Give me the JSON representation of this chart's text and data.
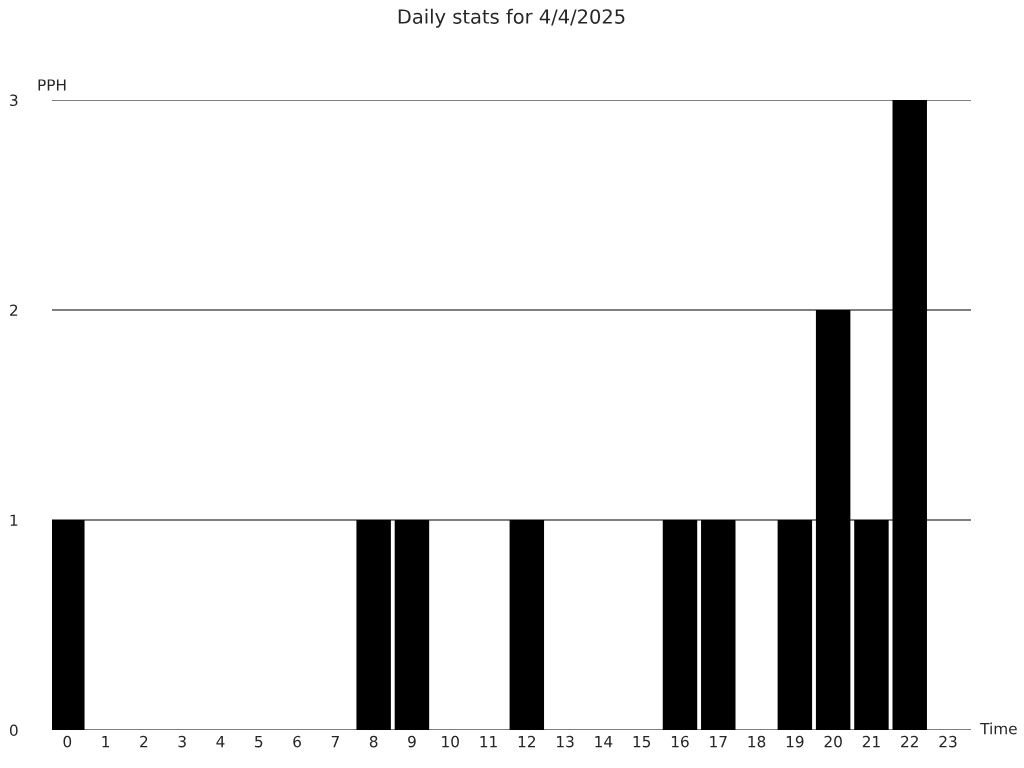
{
  "chart_data": {
    "type": "bar",
    "title": "Daily stats for 4/4/2025",
    "xlabel": "Time",
    "ylabel": "PPH",
    "categories": [
      "0",
      "1",
      "2",
      "3",
      "4",
      "5",
      "6",
      "7",
      "8",
      "9",
      "10",
      "11",
      "12",
      "13",
      "14",
      "15",
      "16",
      "17",
      "18",
      "19",
      "20",
      "21",
      "22",
      "23"
    ],
    "values": [
      1,
      0,
      0,
      0,
      0,
      0,
      0,
      0,
      1,
      1,
      0,
      0,
      1,
      0,
      0,
      0,
      1,
      1,
      0,
      1,
      2,
      1,
      3,
      0
    ],
    "color": "#000000",
    "ylim": [
      0,
      3
    ],
    "yticks": [
      0,
      1,
      2,
      3
    ],
    "grid": "y",
    "legend": false
  }
}
